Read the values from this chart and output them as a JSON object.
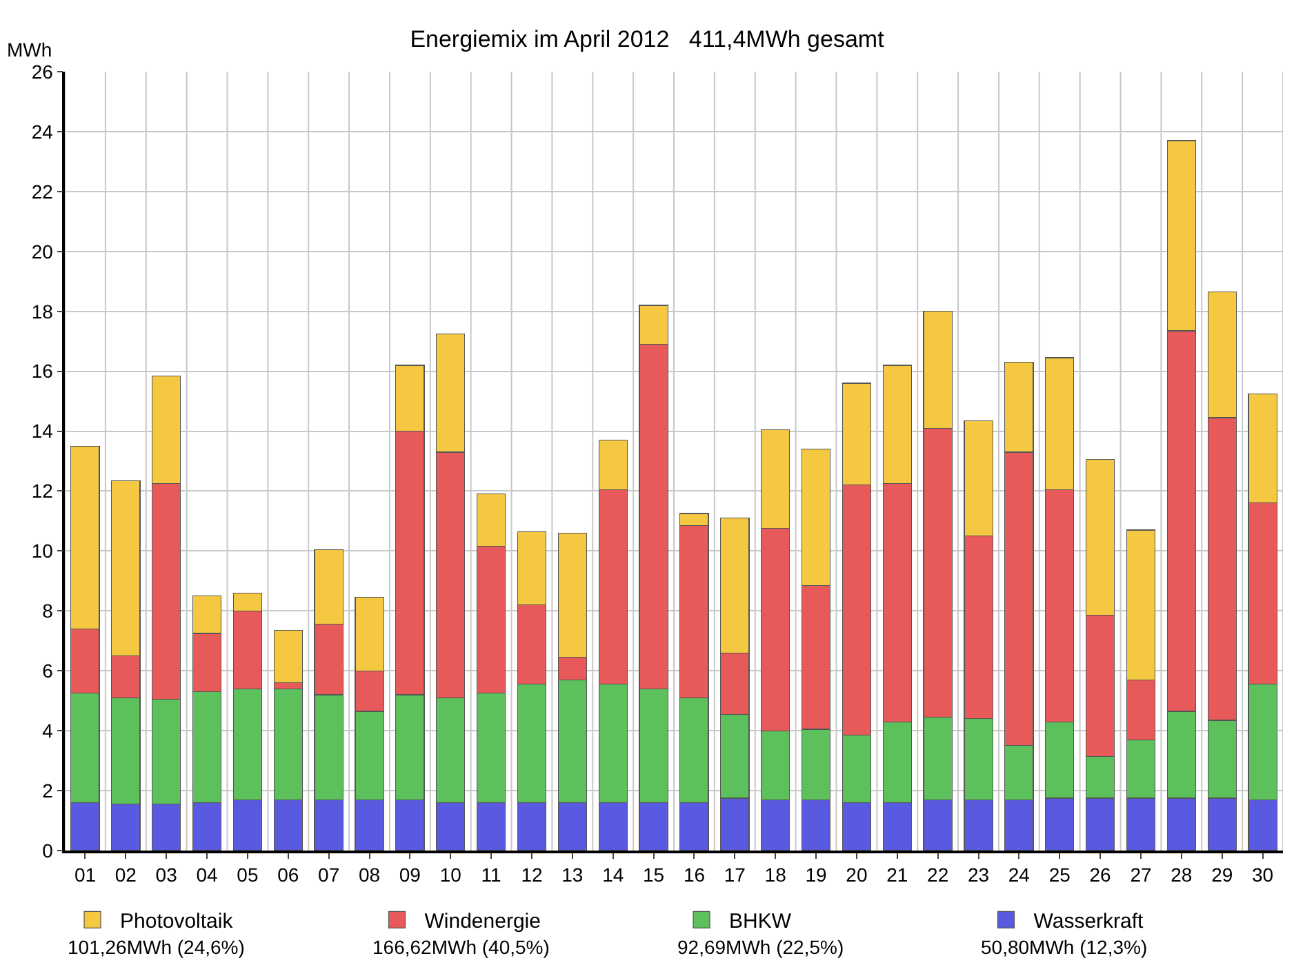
{
  "chart_data": {
    "type": "bar",
    "stacked": true,
    "title": "Energiemix im April 2012   411,4MWh gesamt",
    "ylabel": "MWh",
    "categories": [
      "01",
      "02",
      "03",
      "04",
      "05",
      "06",
      "07",
      "08",
      "09",
      "10",
      "11",
      "12",
      "13",
      "14",
      "15",
      "16",
      "17",
      "18",
      "19",
      "20",
      "21",
      "22",
      "23",
      "24",
      "25",
      "26",
      "27",
      "28",
      "29",
      "30"
    ],
    "series": [
      {
        "name": "Wasserkraft",
        "color": "#5a5ae0",
        "values": [
          1.6,
          1.55,
          1.55,
          1.6,
          1.7,
          1.7,
          1.7,
          1.7,
          1.7,
          1.6,
          1.6,
          1.6,
          1.6,
          1.6,
          1.6,
          1.6,
          1.75,
          1.7,
          1.7,
          1.6,
          1.6,
          1.7,
          1.7,
          1.7,
          1.75,
          1.75,
          1.75,
          1.75,
          1.75,
          1.7
        ]
      },
      {
        "name": "BHKW",
        "color": "#5cc05c",
        "values": [
          3.65,
          3.55,
          3.5,
          3.7,
          3.7,
          3.7,
          3.5,
          2.95,
          3.5,
          3.5,
          3.65,
          3.95,
          4.1,
          3.95,
          3.8,
          3.5,
          2.8,
          2.3,
          2.35,
          2.25,
          2.7,
          2.75,
          2.7,
          1.8,
          2.55,
          1.4,
          1.95,
          2.9,
          2.6,
          3.85
        ]
      },
      {
        "name": "Windenergie",
        "color": "#e85a5a",
        "values": [
          2.15,
          1.4,
          7.2,
          1.95,
          2.6,
          0.2,
          2.35,
          1.35,
          8.8,
          8.2,
          4.9,
          2.65,
          0.75,
          6.5,
          11.5,
          5.75,
          2.05,
          6.75,
          4.8,
          8.35,
          7.95,
          9.65,
          6.1,
          9.8,
          7.75,
          4.7,
          2.0,
          12.7,
          10.1,
          6.05
        ]
      },
      {
        "name": "Photovoltaik",
        "color": "#f5c842",
        "values": [
          6.1,
          5.85,
          3.6,
          1.25,
          0.6,
          1.75,
          2.5,
          2.45,
          2.2,
          3.95,
          1.75,
          2.45,
          4.15,
          1.65,
          1.3,
          0.4,
          4.5,
          3.3,
          4.55,
          3.4,
          3.95,
          3.9,
          3.85,
          3.0,
          4.4,
          5.2,
          5.0,
          6.35,
          4.2,
          3.65
        ]
      }
    ],
    "ylim": [
      0,
      26
    ],
    "yticks": [
      0,
      2,
      4,
      6,
      8,
      10,
      12,
      14,
      16,
      18,
      20,
      22,
      24,
      26
    ],
    "grid": true,
    "legend": "bottom",
    "annotations": [
      "101,26MWh (24,6%)",
      "166,62MWh (40,5%)",
      "92,69MWh (22,5%)",
      "50,80MWh (12,3%)"
    ]
  }
}
